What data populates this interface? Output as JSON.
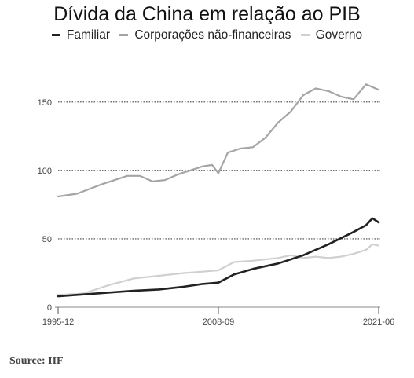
{
  "chart_data": {
    "type": "line",
    "title": "Dívida da China em relação ao PIB",
    "xlabel": "",
    "ylabel": "",
    "x_ticks": [
      "1995-12",
      "2008-09",
      "2021-06"
    ],
    "y_ticks": [
      0,
      50,
      100,
      150
    ],
    "ylim": [
      0,
      170
    ],
    "xlim": [
      "1995-12",
      "2021-06"
    ],
    "grid": "horizontal dotted",
    "legend_position": "top",
    "series": [
      {
        "name": "Familiar",
        "color": "#222222",
        "points": [
          [
            "1995-12",
            8
          ],
          [
            "1998-12",
            10
          ],
          [
            "2001-12",
            12
          ],
          [
            "2003-12",
            13
          ],
          [
            "2005-12",
            15
          ],
          [
            "2007-06",
            17
          ],
          [
            "2008-09",
            18
          ],
          [
            "2009-12",
            24
          ],
          [
            "2011-06",
            28
          ],
          [
            "2013-06",
            32
          ],
          [
            "2015-06",
            38
          ],
          [
            "2017-06",
            46
          ],
          [
            "2019-06",
            55
          ],
          [
            "2020-06",
            60
          ],
          [
            "2020-12",
            65
          ],
          [
            "2021-06",
            62
          ]
        ]
      },
      {
        "name": "Corporações não-financeiras",
        "color": "#a5a5a5",
        "points": [
          [
            "1995-12",
            81
          ],
          [
            "1997-06",
            83
          ],
          [
            "1999-06",
            90
          ],
          [
            "2001-06",
            96
          ],
          [
            "2002-06",
            96
          ],
          [
            "2003-06",
            92
          ],
          [
            "2004-06",
            93
          ],
          [
            "2005-06",
            97
          ],
          [
            "2006-06",
            100
          ],
          [
            "2007-06",
            103
          ],
          [
            "2008-03",
            104
          ],
          [
            "2008-09",
            98
          ],
          [
            "2009-06",
            113
          ],
          [
            "2010-06",
            116
          ],
          [
            "2011-06",
            117
          ],
          [
            "2012-06",
            124
          ],
          [
            "2013-06",
            135
          ],
          [
            "2014-06",
            143
          ],
          [
            "2015-06",
            155
          ],
          [
            "2016-06",
            160
          ],
          [
            "2017-06",
            158
          ],
          [
            "2018-06",
            154
          ],
          [
            "2019-06",
            152
          ],
          [
            "2020-06",
            163
          ],
          [
            "2021-06",
            159
          ]
        ]
      },
      {
        "name": "Governo",
        "color": "#d0d0d0",
        "points": [
          [
            "1995-12",
            9
          ],
          [
            "1997-12",
            10
          ],
          [
            "1999-12",
            16
          ],
          [
            "2001-12",
            21
          ],
          [
            "2003-12",
            23
          ],
          [
            "2005-12",
            25
          ],
          [
            "2007-06",
            26
          ],
          [
            "2008-09",
            27
          ],
          [
            "2009-12",
            33
          ],
          [
            "2011-06",
            34
          ],
          [
            "2013-06",
            36
          ],
          [
            "2014-06",
            38
          ],
          [
            "2015-06",
            36
          ],
          [
            "2016-06",
            37
          ],
          [
            "2017-06",
            36
          ],
          [
            "2018-06",
            37
          ],
          [
            "2019-06",
            39
          ],
          [
            "2020-06",
            42
          ],
          [
            "2020-12",
            46
          ],
          [
            "2021-06",
            45
          ]
        ]
      }
    ]
  },
  "source": "Source: IIF"
}
